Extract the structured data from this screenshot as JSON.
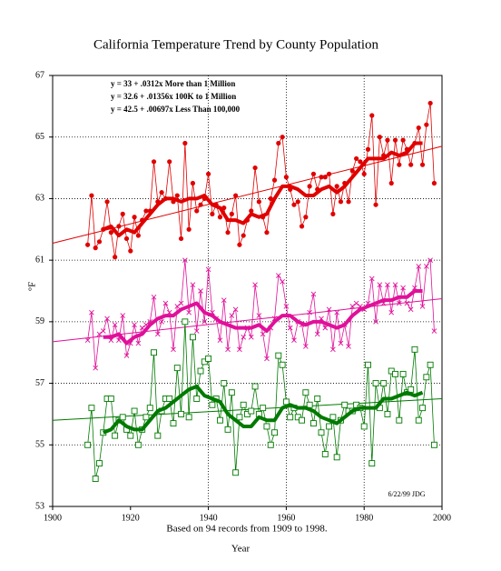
{
  "chart_data": {
    "type": "line",
    "title": "California Temperature Trend by County Population",
    "subtitle": "Based on 94 records from 1909 to 1998.",
    "x_label": "Year",
    "y_label": "°F",
    "annotation": "6/22/99 JDG",
    "xlim": [
      1900,
      2000
    ],
    "xticks": [
      1900,
      1920,
      1940,
      1960,
      1980,
      2000
    ],
    "ylim": [
      53,
      67
    ],
    "yticks": [
      53,
      55,
      57,
      59,
      61,
      63,
      65,
      67
    ],
    "grid": true,
    "x": [
      1909,
      1910,
      1911,
      1912,
      1913,
      1914,
      1915,
      1916,
      1917,
      1918,
      1919,
      1920,
      1921,
      1922,
      1923,
      1924,
      1925,
      1926,
      1927,
      1928,
      1929,
      1930,
      1931,
      1932,
      1933,
      1934,
      1935,
      1936,
      1937,
      1938,
      1939,
      1940,
      1941,
      1942,
      1943,
      1944,
      1945,
      1946,
      1947,
      1948,
      1949,
      1950,
      1951,
      1952,
      1953,
      1954,
      1955,
      1956,
      1957,
      1958,
      1959,
      1960,
      1961,
      1962,
      1963,
      1964,
      1965,
      1966,
      1967,
      1968,
      1969,
      1970,
      1971,
      1972,
      1973,
      1974,
      1975,
      1976,
      1977,
      1978,
      1979,
      1980,
      1981,
      1982,
      1983,
      1984,
      1985,
      1986,
      1987,
      1988,
      1989,
      1990,
      1991,
      1992,
      1993,
      1994,
      1995,
      1996,
      1997,
      1998
    ],
    "smooth_x": [
      1913,
      1915,
      1917,
      1919,
      1921,
      1923,
      1925,
      1927,
      1929,
      1931,
      1933,
      1935,
      1937,
      1939,
      1941,
      1943,
      1945,
      1947,
      1949,
      1951,
      1953,
      1955,
      1957,
      1959,
      1961,
      1963,
      1965,
      1967,
      1969,
      1971,
      1973,
      1975,
      1977,
      1979,
      1981,
      1983,
      1985,
      1987,
      1989,
      1991,
      1993,
      1995
    ],
    "trend_x": [
      1900,
      2000
    ],
    "series": [
      {
        "name": "y = 33 + .0312x  More than 1 Million",
        "color": "#e00000",
        "marker": "dot",
        "values": [
          61.5,
          63.1,
          61.4,
          61.6,
          62.0,
          62.9,
          61.9,
          61.1,
          62.1,
          62.5,
          61.7,
          61.3,
          62.4,
          61.8,
          62.3,
          62.6,
          62.6,
          64.2,
          62.9,
          63.2,
          63.0,
          64.2,
          62.9,
          63.1,
          61.7,
          64.8,
          62.0,
          63.5,
          62.6,
          62.8,
          63.0,
          63.8,
          62.5,
          62.8,
          62.4,
          62.7,
          61.9,
          62.5,
          63.1,
          61.5,
          61.8,
          62.3,
          62.6,
          64.0,
          62.9,
          62.4,
          61.9,
          63.0,
          63.6,
          64.8,
          65.0,
          63.7,
          63.3,
          62.8,
          62.9,
          62.1,
          62.4,
          63.4,
          63.8,
          63.3,
          63.7,
          63.7,
          63.8,
          62.5,
          63.4,
          62.9,
          63.5,
          62.9,
          63.9,
          64.3,
          64.2,
          63.8,
          64.6,
          65.7,
          62.8,
          65.0,
          64.4,
          64.9,
          63.5,
          64.9,
          64.1,
          64.9,
          64.6,
          64.1,
          64.8,
          65.3,
          64.1,
          65.4,
          66.1,
          63.5
        ],
        "smoothed": [
          62.0,
          62.1,
          61.8,
          62.0,
          61.9,
          62.2,
          62.5,
          62.8,
          63.0,
          63.0,
          62.9,
          63.0,
          63.0,
          63.1,
          62.8,
          62.7,
          62.3,
          62.3,
          62.2,
          62.5,
          62.4,
          62.5,
          63.0,
          63.4,
          63.4,
          63.3,
          63.1,
          63.1,
          63.3,
          63.4,
          63.2,
          63.4,
          63.7,
          64.0,
          64.3,
          64.3,
          64.3,
          64.5,
          64.4,
          64.5,
          64.8,
          64.8
        ],
        "trend": [
          61.55,
          64.7
        ]
      },
      {
        "name": "y = 32.6 + .01356x  100K to 1 Million",
        "color": "#e0109a",
        "marker": "cross",
        "values": [
          58.4,
          59.3,
          57.5,
          58.6,
          58.7,
          59.1,
          58.4,
          58.9,
          58.4,
          59.2,
          57.9,
          58.3,
          58.9,
          58.3,
          58.8,
          58.9,
          59.0,
          59.8,
          58.6,
          59.0,
          59.6,
          59.3,
          58.1,
          59.5,
          59.6,
          61.0,
          59.3,
          60.2,
          58.7,
          60.0,
          59.0,
          60.7,
          59.3,
          59.1,
          58.4,
          59.7,
          58.1,
          59.2,
          59.4,
          58.1,
          58.5,
          58.8,
          58.5,
          60.2,
          59.2,
          58.6,
          57.8,
          58.8,
          59.1,
          60.5,
          60.3,
          59.5,
          58.8,
          58.4,
          59.0,
          58.9,
          58.2,
          59.3,
          59.9,
          58.6,
          59.1,
          58.8,
          59.4,
          58.1,
          59.3,
          58.3,
          58.9,
          58.2,
          59.5,
          59.6,
          59.5,
          59.4,
          59.6,
          60.4,
          59.0,
          60.2,
          59.6,
          60.2,
          59.3,
          60.2,
          59.6,
          60.1,
          59.6,
          59.4,
          60.1,
          60.8,
          59.5,
          60.8,
          61.0,
          58.7
        ],
        "smoothed": [
          58.5,
          58.5,
          58.6,
          58.3,
          58.5,
          58.6,
          58.9,
          59.1,
          59.2,
          59.2,
          59.4,
          59.5,
          59.6,
          59.3,
          59.2,
          59.0,
          58.9,
          58.8,
          58.8,
          58.8,
          58.9,
          58.7,
          59.0,
          59.2,
          59.2,
          59.0,
          58.9,
          59.0,
          59.0,
          58.9,
          58.8,
          58.9,
          59.2,
          59.4,
          59.5,
          59.6,
          59.7,
          59.7,
          59.8,
          59.8,
          60.0,
          60.0
        ],
        "trend": [
          58.35,
          59.75
        ]
      },
      {
        "name": "y = 42.5 + .00697x  Less Than 100,000",
        "color": "#007a00",
        "marker": "square",
        "values": [
          55.0,
          56.2,
          53.9,
          54.4,
          55.4,
          56.5,
          56.5,
          55.3,
          55.8,
          55.9,
          55.5,
          55.3,
          56.1,
          55.0,
          55.5,
          55.9,
          56.2,
          58.0,
          55.3,
          56.1,
          56.5,
          56.5,
          55.7,
          57.5,
          56.0,
          59.0,
          55.9,
          58.5,
          56.5,
          57.4,
          57.7,
          57.8,
          56.3,
          56.5,
          55.8,
          57.0,
          55.5,
          56.7,
          54.1,
          55.9,
          56.3,
          56.0,
          56.1,
          56.9,
          56.0,
          56.2,
          55.6,
          55.0,
          55.4,
          57.9,
          57.6,
          56.4,
          55.9,
          56.2,
          55.9,
          55.8,
          56.7,
          56.3,
          55.7,
          56.5,
          55.4,
          54.7,
          55.6,
          55.9,
          54.6,
          55.8,
          56.3,
          56.1,
          56.1,
          56.3,
          56.2,
          55.6,
          57.6,
          54.4,
          57.0,
          56.2,
          57.0,
          56.0,
          57.4,
          57.3,
          55.8,
          57.3,
          56.7,
          56.8,
          58.1,
          55.8,
          56.2,
          57.2,
          57.6,
          55.0
        ],
        "smoothed": [
          55.4,
          55.5,
          55.8,
          55.6,
          55.5,
          55.5,
          55.8,
          56.1,
          56.2,
          56.4,
          56.6,
          56.8,
          56.9,
          56.6,
          56.5,
          56.4,
          56.0,
          55.8,
          55.6,
          55.6,
          55.9,
          55.8,
          55.8,
          56.2,
          56.3,
          56.2,
          56.2,
          56.1,
          55.9,
          55.8,
          55.7,
          55.9,
          56.1,
          56.2,
          56.2,
          56.2,
          56.5,
          56.5,
          56.6,
          56.7,
          56.6,
          56.7
        ],
        "trend": [
          55.8,
          56.5
        ]
      }
    ]
  }
}
